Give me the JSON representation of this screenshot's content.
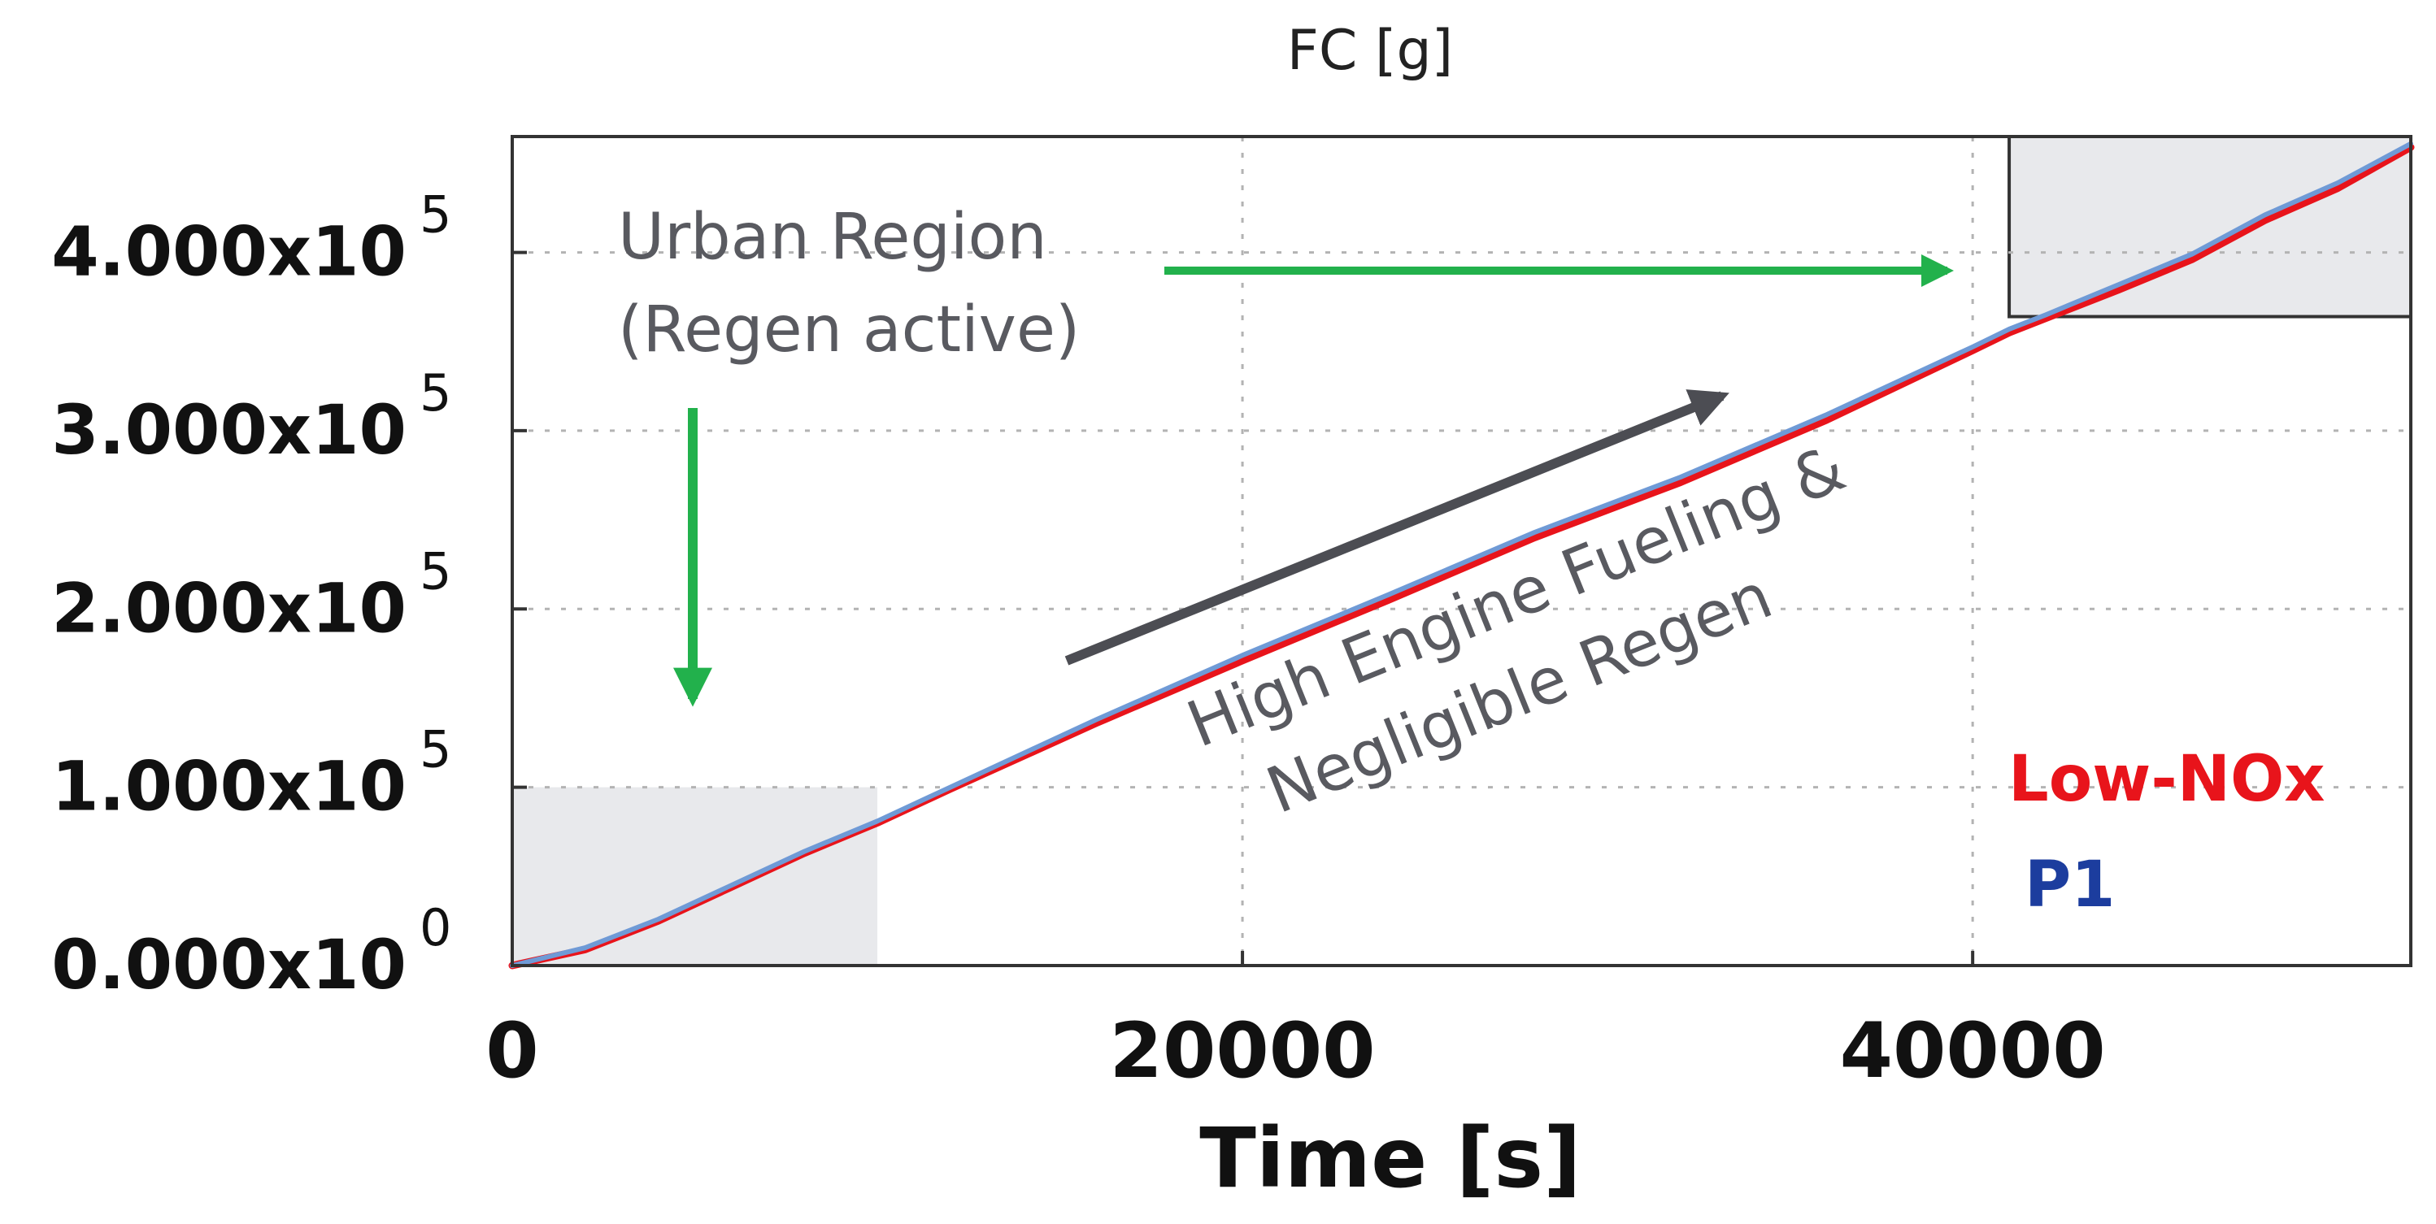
{
  "chart_data": {
    "type": "line",
    "title": "FC [g]",
    "xlabel": "Time [s]",
    "ylabel": "",
    "xlim": [
      0,
      52000
    ],
    "ylim": [
      0,
      465000
    ],
    "x_ticks": [
      {
        "value": 0,
        "label": "0"
      },
      {
        "value": 20000,
        "label": "20000"
      },
      {
        "value": 40000,
        "label": "40000"
      }
    ],
    "y_ticks": [
      {
        "value": 0,
        "mantissa": "0.000x10",
        "exp": "0"
      },
      {
        "value": 100000,
        "mantissa": "1.000x10",
        "exp": "5"
      },
      {
        "value": 200000,
        "mantissa": "2.000x10",
        "exp": "5"
      },
      {
        "value": 300000,
        "mantissa": "3.000x10",
        "exp": "5"
      },
      {
        "value": 400000,
        "mantissa": "4.000x10",
        "exp": "5"
      }
    ],
    "grid": true,
    "legend_position": "bottom-right",
    "series": [
      {
        "name": "Low-NOx",
        "color": "#e8141b",
        "x": [
          0,
          2000,
          4000,
          6000,
          8000,
          10000,
          12000,
          16000,
          20000,
          24000,
          28000,
          32000,
          36000,
          40000,
          41000,
          42000,
          44000,
          46000,
          48000,
          50000,
          52000
        ],
        "y": [
          0,
          9000,
          25000,
          44000,
          63000,
          80000,
          99000,
          136000,
          171000,
          205000,
          240000,
          271000,
          306000,
          345000,
          355000,
          363000,
          379000,
          396000,
          418000,
          436000,
          459000
        ]
      },
      {
        "name": "P1",
        "color": "#1c3d9e",
        "x": [
          0,
          2000,
          4000,
          6000,
          8000,
          10000,
          12000,
          16000,
          20000,
          24000,
          28000,
          32000,
          36000,
          40000,
          41000,
          42000,
          44000,
          46000,
          48000,
          50000,
          52000
        ],
        "y": [
          0,
          10000,
          26000,
          45000,
          64000,
          81000,
          100000,
          138000,
          174000,
          208000,
          243000,
          274000,
          309000,
          347000,
          357000,
          365000,
          382000,
          399000,
          421000,
          439000,
          461000
        ]
      }
    ],
    "shaded_regions": [
      {
        "name": "urban-start",
        "x": [
          0,
          10000
        ],
        "y": [
          0,
          100000
        ]
      },
      {
        "name": "urban-end",
        "x": [
          41000,
          52000
        ],
        "y": [
          364000,
          465000
        ]
      }
    ],
    "annotations": {
      "urban_line1": "Urban Region",
      "urban_line2": "(Regen active)",
      "fueling_line1": "High Engine Fueling &",
      "fueling_line2": "Negligible Regen"
    },
    "colors": {
      "green_arrow": "#22b14c",
      "dark_arrow": "#4c4d53",
      "shade": "#e8e9ec",
      "p1_line": "#6f9ad6"
    }
  }
}
